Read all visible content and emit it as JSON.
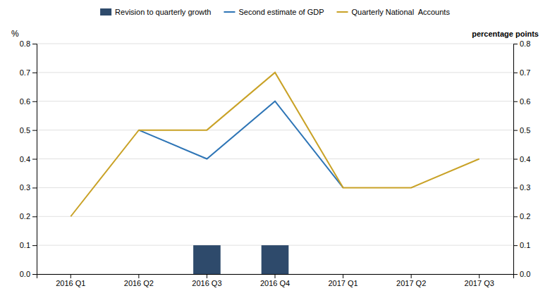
{
  "chart_data": {
    "type": "bar",
    "categories": [
      "2016 Q1",
      "2016 Q2",
      "2016 Q3",
      "2016 Q4",
      "2017 Q1",
      "2017 Q2",
      "2017 Q3"
    ],
    "series": [
      {
        "name": "Revision to quarterly growth",
        "type": "bar",
        "color": "#2E4A6B",
        "values": [
          0.0,
          0.0,
          0.1,
          0.1,
          0.0,
          0.0,
          0.0
        ]
      },
      {
        "name": "Second estimate of GDP",
        "type": "line",
        "color": "#2E75B6",
        "values": [
          null,
          0.5,
          0.4,
          0.6,
          0.3,
          null,
          null
        ]
      },
      {
        "name": "Quarterly National  Accounts",
        "type": "line",
        "color": "#C9A227",
        "values": [
          0.2,
          0.5,
          0.5,
          0.7,
          0.3,
          0.3,
          0.4
        ]
      }
    ],
    "ylabel": "%",
    "y2label": "percentage points",
    "ylim": [
      0.0,
      0.8
    ],
    "yticks": [
      {
        "value": 0.0,
        "label": "0.0"
      },
      0.1,
      0.2,
      0.3,
      0.4,
      0.5,
      0.6,
      0.7,
      0.8
    ],
    "y2lim": [
      0.0,
      0.8
    ],
    "y2ticks": [
      {
        "value": 0.0,
        "label": "0.0"
      },
      0.1,
      0.2,
      0.3,
      0.4,
      0.5,
      0.6,
      0.7,
      0.8
    ],
    "grid": true,
    "legend": "top"
  }
}
